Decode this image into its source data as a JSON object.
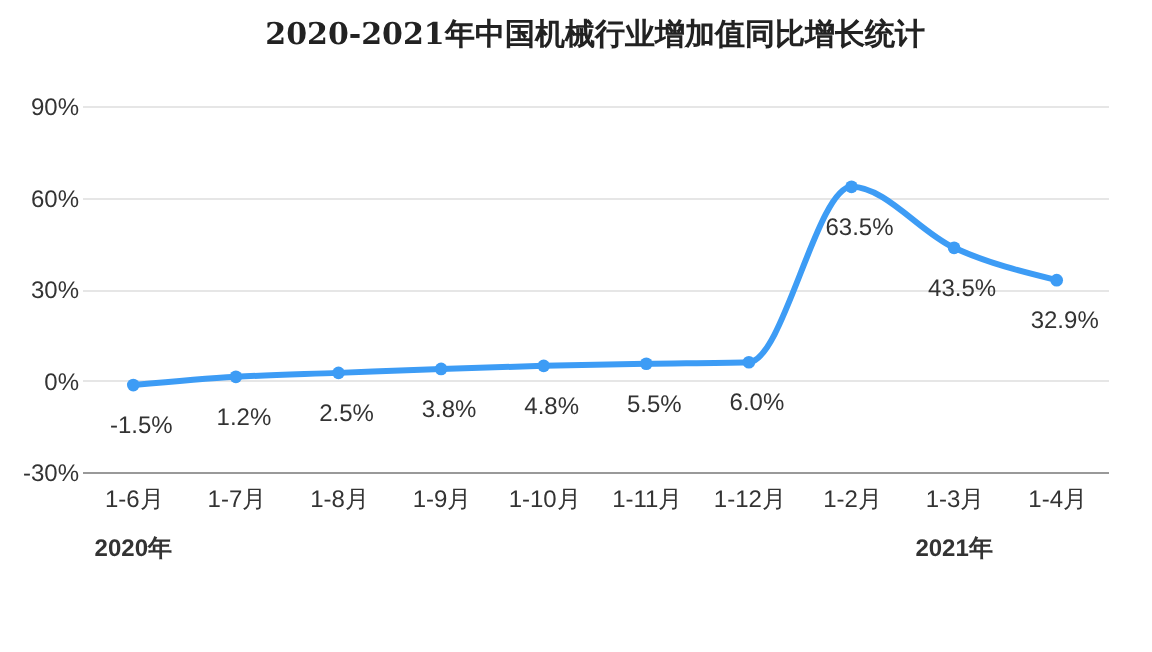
{
  "chart_data": {
    "type": "line",
    "title": "2020-2021年中国机械行业增加值同比增长统计",
    "categories": [
      "1-6月",
      "1-7月",
      "1-8月",
      "1-9月",
      "1-10月",
      "1-11月",
      "1-12月",
      "1-2月",
      "1-3月",
      "1-4月"
    ],
    "series": [
      {
        "color": "#3d9cf5",
        "values": [
          -1.5,
          1.2,
          2.5,
          3.8,
          4.8,
          5.5,
          6.0,
          63.5,
          43.5,
          32.9
        ],
        "value_labels": [
          "-1.5%",
          "1.2%",
          "2.5%",
          "3.8%",
          "4.8%",
          "5.5%",
          "6.0%",
          "63.5%",
          "43.5%",
          "32.9%"
        ]
      }
    ],
    "ylim": [
      -30,
      90
    ],
    "yticks": [
      {
        "value": -30,
        "label": "-30%"
      },
      {
        "value": 0,
        "label": "0%"
      },
      {
        "value": 30,
        "label": "30%"
      },
      {
        "value": 60,
        "label": "60%"
      },
      {
        "value": 90,
        "label": "90%"
      }
    ],
    "grid": "y",
    "marker": "circle",
    "line_style": "solid",
    "annotations": [
      "2020年",
      "2021年"
    ]
  }
}
